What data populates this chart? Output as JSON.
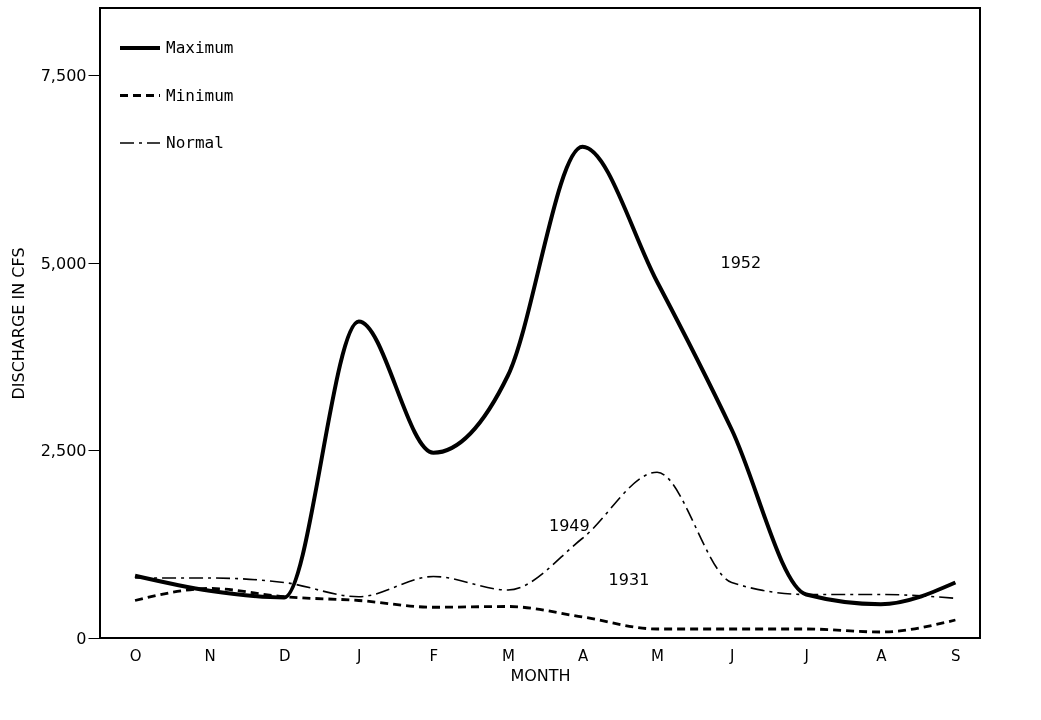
{
  "chart_data": {
    "type": "line",
    "xlabel": "MONTH",
    "ylabel": "DISCHARGE IN CFS",
    "categories": [
      "O",
      "N",
      "D",
      "J",
      "F",
      "M",
      "A",
      "M",
      "J",
      "J",
      "A",
      "S"
    ],
    "ylim": [
      0,
      8400
    ],
    "yticks": [
      0,
      {
        "value": 2500,
        "label": "2,500"
      },
      {
        "value": 5000,
        "label": "5,000"
      },
      {
        "value": 7500,
        "label": "7,500"
      }
    ],
    "grid": false,
    "legend": "top left",
    "marker": "none",
    "series": [
      {
        "name": "Maximum",
        "color": "#000000",
        "line_style": "solid",
        "values": [
          830,
          630,
          540,
          4220,
          2470,
          3500,
          6550,
          4750,
          2780,
          580,
          450,
          740
        ]
      },
      {
        "name": "Minimum",
        "color": "#000000",
        "line_style": "dashed",
        "values": [
          500,
          660,
          550,
          500,
          410,
          420,
          280,
          120,
          120,
          120,
          80,
          240
        ]
      },
      {
        "name": "Normal",
        "color": "#000000",
        "line_style": "dashdot",
        "values": [
          800,
          800,
          740,
          550,
          820,
          640,
          1330,
          2210,
          740,
          580,
          580,
          530
        ]
      }
    ],
    "annotations": [
      "1952",
      "1949",
      "1931"
    ]
  }
}
